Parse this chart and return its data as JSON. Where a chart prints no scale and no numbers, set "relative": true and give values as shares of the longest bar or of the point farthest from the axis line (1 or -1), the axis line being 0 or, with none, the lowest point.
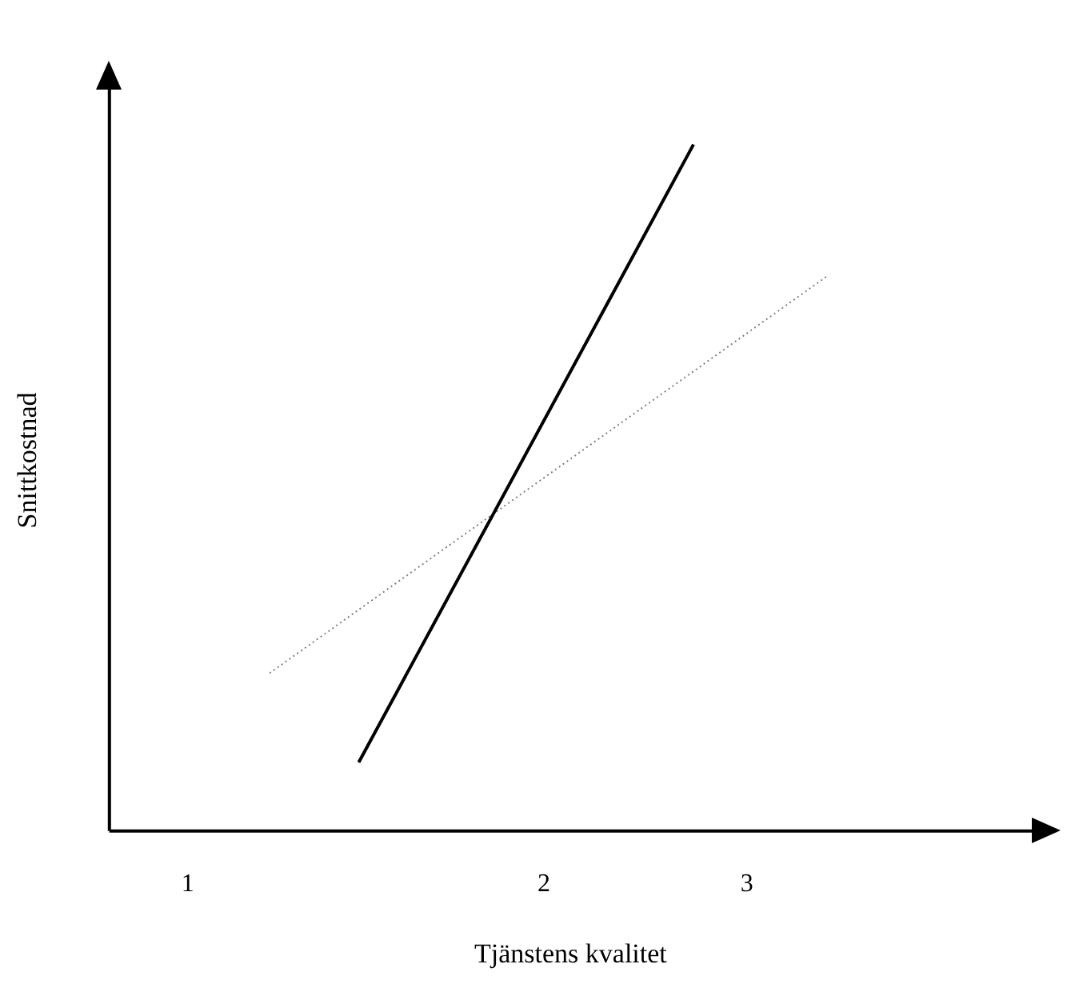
{
  "chart_data": {
    "type": "line",
    "relative": true,
    "xlabel": "Tjänstens kvalitet",
    "ylabel": "Snittkostnad",
    "xlim": [
      0.78,
      3.37
    ],
    "xticks": [
      1,
      2,
      {
        "value": 2.57,
        "label": "3"
      }
    ],
    "series": [
      {
        "x": [
          1.48,
          2.42
        ],
        "values": [
          0.1,
          1
        ],
        "color": "#000000",
        "line_style": "solid"
      },
      {
        "x": [
          1.23,
          2.8
        ],
        "values": [
          0.23,
          0.81
        ],
        "color": "#808080",
        "line_style": "dotted"
      }
    ],
    "grid": false,
    "legend": false,
    "marker": "none"
  }
}
